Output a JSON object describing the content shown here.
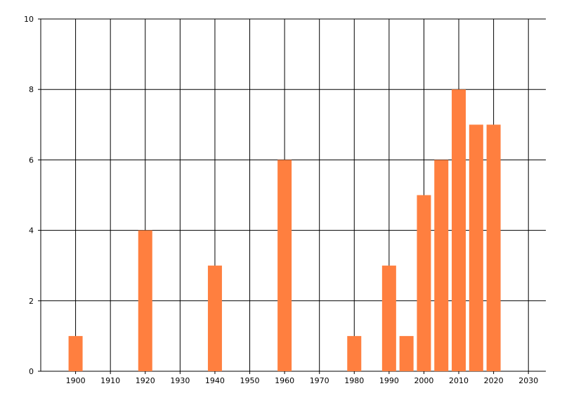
{
  "chart_data": {
    "type": "bar",
    "x": [
      1900,
      1920,
      1940,
      1960,
      1980,
      1990,
      1995,
      2000,
      2005,
      2010,
      2015,
      2020
    ],
    "values": [
      1,
      4,
      3,
      6,
      1,
      3,
      1,
      5,
      6,
      8,
      7,
      7
    ],
    "color": "#ff7f3f",
    "xlim": [
      1890,
      2035
    ],
    "xticks": [
      1900,
      1910,
      1920,
      1930,
      1940,
      1950,
      1960,
      1970,
      1980,
      1990,
      2000,
      2010,
      2020,
      2030
    ],
    "ylim": [
      0,
      10
    ],
    "yticks": [
      0,
      2,
      4,
      6,
      8,
      10
    ],
    "grid": true
  }
}
